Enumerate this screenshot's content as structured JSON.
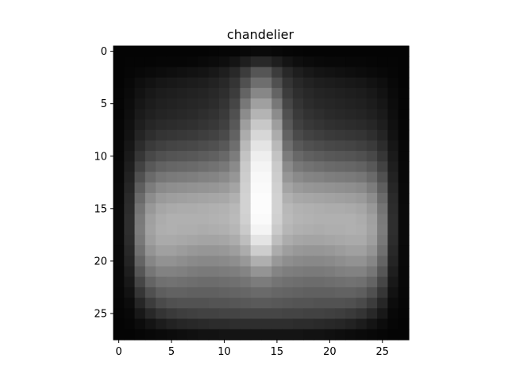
{
  "chart_data": {
    "type": "heatmap",
    "title": "chandelier",
    "xlabel": "",
    "ylabel": "",
    "colormap": "gray",
    "grid": false,
    "rows": 28,
    "cols": 28,
    "xlim": [
      -0.5,
      27.5
    ],
    "ylim": [
      27.5,
      -0.5
    ],
    "xticks": [
      0,
      5,
      10,
      15,
      20,
      25
    ],
    "yticks": [
      0,
      5,
      10,
      15,
      20,
      25
    ],
    "value_range": [
      0,
      255
    ],
    "values": [
      [
        4,
        4,
        4,
        4,
        4,
        4,
        4,
        4,
        4,
        5,
        6,
        6,
        8,
        10,
        10,
        8,
        6,
        5,
        4,
        4,
        4,
        4,
        4,
        4,
        4,
        4,
        4,
        4
      ],
      [
        4,
        5,
        5,
        5,
        6,
        6,
        6,
        7,
        9,
        11,
        14,
        20,
        30,
        40,
        40,
        30,
        20,
        14,
        11,
        9,
        8,
        8,
        7,
        7,
        6,
        5,
        5,
        4
      ],
      [
        4,
        6,
        8,
        10,
        12,
        14,
        16,
        18,
        20,
        24,
        30,
        40,
        60,
        85,
        85,
        60,
        40,
        30,
        24,
        20,
        18,
        16,
        14,
        12,
        10,
        8,
        6,
        4
      ],
      [
        4,
        8,
        14,
        18,
        22,
        24,
        26,
        28,
        30,
        34,
        40,
        52,
        80,
        110,
        110,
        80,
        52,
        40,
        34,
        30,
        28,
        26,
        24,
        22,
        18,
        14,
        8,
        4
      ],
      [
        5,
        10,
        18,
        24,
        28,
        30,
        32,
        34,
        36,
        40,
        46,
        60,
        100,
        135,
        135,
        100,
        60,
        46,
        40,
        36,
        34,
        32,
        30,
        28,
        24,
        18,
        10,
        5
      ],
      [
        5,
        12,
        22,
        28,
        32,
        34,
        36,
        38,
        40,
        44,
        52,
        70,
        120,
        160,
        160,
        120,
        70,
        52,
        44,
        40,
        38,
        36,
        34,
        32,
        28,
        22,
        12,
        5
      ],
      [
        5,
        14,
        26,
        32,
        36,
        38,
        40,
        42,
        46,
        50,
        58,
        80,
        140,
        180,
        180,
        140,
        80,
        58,
        50,
        46,
        42,
        40,
        38,
        36,
        32,
        26,
        14,
        5
      ],
      [
        6,
        16,
        30,
        38,
        42,
        44,
        46,
        48,
        52,
        56,
        64,
        88,
        158,
        200,
        200,
        158,
        88,
        64,
        56,
        52,
        48,
        46,
        44,
        42,
        38,
        30,
        16,
        6
      ],
      [
        6,
        18,
        36,
        46,
        52,
        54,
        56,
        58,
        62,
        66,
        74,
        98,
        172,
        215,
        215,
        172,
        98,
        74,
        66,
        62,
        58,
        56,
        54,
        52,
        46,
        36,
        18,
        6
      ],
      [
        7,
        22,
        44,
        58,
        64,
        68,
        70,
        72,
        76,
        80,
        88,
        110,
        185,
        228,
        228,
        185,
        110,
        88,
        80,
        76,
        72,
        70,
        68,
        64,
        58,
        44,
        22,
        7
      ],
      [
        7,
        26,
        54,
        72,
        80,
        84,
        86,
        88,
        92,
        96,
        104,
        124,
        195,
        238,
        238,
        195,
        124,
        104,
        96,
        92,
        88,
        86,
        84,
        80,
        72,
        54,
        26,
        7
      ],
      [
        8,
        30,
        66,
        88,
        98,
        102,
        104,
        106,
        110,
        114,
        120,
        138,
        202,
        244,
        244,
        202,
        138,
        120,
        114,
        110,
        106,
        104,
        102,
        98,
        88,
        66,
        30,
        8
      ],
      [
        8,
        34,
        80,
        106,
        118,
        122,
        124,
        126,
        130,
        132,
        138,
        150,
        205,
        248,
        248,
        205,
        150,
        138,
        132,
        130,
        126,
        124,
        122,
        118,
        106,
        80,
        34,
        8
      ],
      [
        9,
        38,
        94,
        124,
        138,
        142,
        144,
        146,
        148,
        150,
        154,
        164,
        208,
        250,
        250,
        208,
        164,
        154,
        150,
        148,
        146,
        144,
        142,
        138,
        124,
        94,
        38,
        9
      ],
      [
        9,
        42,
        106,
        140,
        154,
        158,
        160,
        162,
        164,
        166,
        168,
        176,
        210,
        252,
        252,
        210,
        176,
        168,
        166,
        164,
        162,
        160,
        158,
        154,
        140,
        106,
        42,
        9
      ],
      [
        10,
        44,
        116,
        152,
        166,
        170,
        172,
        172,
        174,
        176,
        178,
        184,
        210,
        252,
        252,
        210,
        184,
        178,
        176,
        174,
        172,
        172,
        170,
        166,
        152,
        116,
        44,
        10
      ],
      [
        10,
        46,
        122,
        160,
        172,
        176,
        176,
        176,
        176,
        178,
        180,
        186,
        208,
        250,
        250,
        208,
        186,
        180,
        178,
        176,
        176,
        176,
        176,
        172,
        160,
        122,
        46,
        10
      ],
      [
        10,
        46,
        124,
        162,
        174,
        176,
        174,
        174,
        172,
        174,
        176,
        182,
        202,
        244,
        244,
        202,
        182,
        176,
        174,
        172,
        174,
        174,
        176,
        174,
        162,
        124,
        46,
        10
      ],
      [
        10,
        44,
        120,
        158,
        170,
        170,
        168,
        166,
        164,
        164,
        166,
        172,
        190,
        228,
        228,
        190,
        172,
        166,
        164,
        164,
        166,
        168,
        170,
        170,
        158,
        120,
        44,
        10
      ],
      [
        9,
        40,
        112,
        148,
        160,
        160,
        156,
        152,
        150,
        150,
        152,
        158,
        172,
        205,
        205,
        172,
        158,
        152,
        150,
        150,
        152,
        156,
        160,
        160,
        148,
        112,
        40,
        9
      ],
      [
        9,
        36,
        100,
        134,
        146,
        146,
        142,
        138,
        136,
        136,
        138,
        142,
        152,
        175,
        175,
        152,
        142,
        138,
        136,
        136,
        138,
        142,
        146,
        146,
        134,
        100,
        36,
        9
      ],
      [
        8,
        30,
        86,
        118,
        130,
        130,
        128,
        124,
        122,
        122,
        124,
        126,
        132,
        148,
        148,
        132,
        126,
        124,
        122,
        122,
        124,
        128,
        130,
        130,
        118,
        86,
        30,
        8
      ],
      [
        8,
        24,
        70,
        100,
        112,
        114,
        112,
        110,
        108,
        108,
        110,
        112,
        116,
        124,
        124,
        116,
        112,
        110,
        108,
        108,
        110,
        112,
        114,
        112,
        100,
        70,
        24,
        8
      ],
      [
        7,
        18,
        54,
        80,
        94,
        98,
        98,
        96,
        96,
        96,
        98,
        100,
        102,
        106,
        106,
        102,
        100,
        98,
        96,
        96,
        96,
        98,
        98,
        94,
        80,
        54,
        18,
        7
      ],
      [
        6,
        12,
        38,
        60,
        74,
        80,
        82,
        82,
        82,
        84,
        84,
        86,
        88,
        90,
        90,
        88,
        86,
        84,
        84,
        82,
        82,
        82,
        80,
        74,
        60,
        38,
        12,
        6
      ],
      [
        5,
        8,
        24,
        40,
        52,
        58,
        62,
        64,
        66,
        66,
        68,
        68,
        70,
        70,
        70,
        70,
        68,
        68,
        66,
        66,
        64,
        62,
        58,
        52,
        40,
        24,
        8,
        5
      ],
      [
        4,
        6,
        12,
        20,
        28,
        34,
        38,
        40,
        42,
        44,
        44,
        46,
        46,
        46,
        46,
        46,
        46,
        44,
        44,
        42,
        40,
        38,
        34,
        28,
        20,
        12,
        6,
        4
      ],
      [
        4,
        4,
        6,
        8,
        10,
        12,
        14,
        16,
        18,
        18,
        20,
        20,
        20,
        20,
        20,
        20,
        20,
        20,
        18,
        18,
        16,
        14,
        12,
        10,
        8,
        6,
        4,
        4
      ]
    ]
  }
}
